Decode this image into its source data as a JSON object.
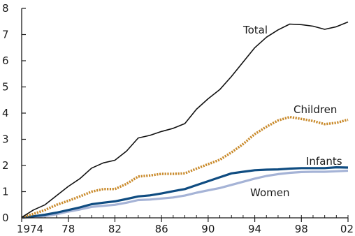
{
  "chart_data": {
    "type": "line",
    "title": "",
    "xlabel": "",
    "ylabel": "",
    "xlim": [
      1974,
      2002
    ],
    "ylim": [
      0,
      8
    ],
    "grid": false,
    "legend": "inline labels",
    "x_ticks": [
      1974,
      1978,
      1982,
      1986,
      1990,
      1994,
      1998,
      2002
    ],
    "x_tick_labels": [
      "1974",
      "78",
      "82",
      "86",
      "90",
      "94",
      "98",
      "02"
    ],
    "y_ticks": [
      0,
      1,
      2,
      3,
      4,
      5,
      6,
      7,
      8
    ],
    "y_tick_labels": [
      "0",
      "1",
      "2",
      "3",
      "4",
      "5",
      "6",
      "7",
      "8"
    ],
    "x": [
      1974,
      1975,
      1976,
      1977,
      1978,
      1979,
      1980,
      1981,
      1982,
      1983,
      1984,
      1985,
      1986,
      1987,
      1988,
      1989,
      1990,
      1991,
      1992,
      1993,
      1994,
      1995,
      1996,
      1997,
      1998,
      1999,
      2000,
      2001,
      2002
    ],
    "series": [
      {
        "name": "Total",
        "color": "#111111",
        "style": "solid",
        "values": [
          0.02,
          0.3,
          0.5,
          0.85,
          1.2,
          1.5,
          1.9,
          2.1,
          2.2,
          2.55,
          3.05,
          3.15,
          3.3,
          3.42,
          3.6,
          4.15,
          4.55,
          4.9,
          5.4,
          5.95,
          6.5,
          6.9,
          7.18,
          7.4,
          7.38,
          7.32,
          7.2,
          7.3,
          7.48
        ]
      },
      {
        "name": "Children",
        "color": "#c98a2b",
        "style": "dotted",
        "values": [
          0.01,
          0.15,
          0.3,
          0.5,
          0.65,
          0.82,
          1.0,
          1.1,
          1.1,
          1.3,
          1.58,
          1.62,
          1.68,
          1.68,
          1.7,
          1.88,
          2.05,
          2.22,
          2.5,
          2.82,
          3.2,
          3.48,
          3.72,
          3.85,
          3.78,
          3.7,
          3.58,
          3.63,
          3.75
        ]
      },
      {
        "name": "Infants",
        "color": "#0f4c81",
        "style": "solid",
        "values": [
          0.01,
          0.06,
          0.12,
          0.2,
          0.3,
          0.4,
          0.52,
          0.58,
          0.63,
          0.72,
          0.82,
          0.86,
          0.93,
          1.02,
          1.1,
          1.25,
          1.4,
          1.55,
          1.7,
          1.76,
          1.82,
          1.84,
          1.85,
          1.88,
          1.9,
          1.9,
          1.9,
          1.93,
          1.92
        ]
      },
      {
        "name": "Women",
        "color": "#a5b3d6",
        "style": "solid",
        "values": [
          0.0,
          0.03,
          0.07,
          0.14,
          0.24,
          0.32,
          0.42,
          0.46,
          0.5,
          0.58,
          0.68,
          0.7,
          0.74,
          0.78,
          0.85,
          0.96,
          1.05,
          1.14,
          1.26,
          1.38,
          1.5,
          1.6,
          1.67,
          1.72,
          1.75,
          1.76,
          1.76,
          1.78,
          1.8
        ]
      }
    ]
  }
}
